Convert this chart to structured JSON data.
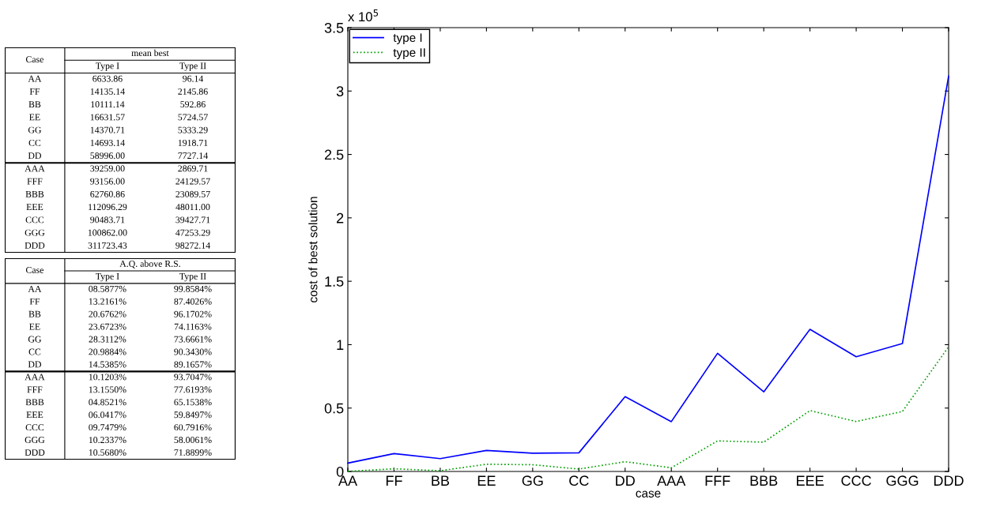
{
  "chart_data": [
    {
      "type": "other",
      "title": "mean best",
      "xlabel": "Case",
      "categories": [
        "AA",
        "FF",
        "BB",
        "EE",
        "GG",
        "CC",
        "DD",
        "AAA",
        "FFF",
        "BBB",
        "EEE",
        "CCC",
        "GGG",
        "DDD"
      ],
      "series": [
        {
          "name": "Type I",
          "values": [
            6633.86,
            14135.14,
            10111.14,
            16631.57,
            14370.71,
            14693.14,
            58996.0,
            39259.0,
            93156.0,
            62760.86,
            112096.29,
            90483.71,
            100862.0,
            311723.43
          ],
          "value_labels": [
            "6633.86",
            "14135.14",
            "10111.14",
            "16631.57",
            "14370.71",
            "14693.14",
            "58996.00",
            "39259.00",
            "93156.00",
            "62760.86",
            "112096.29",
            "90483.71",
            "100862.00",
            "311723.43"
          ]
        },
        {
          "name": "Type II",
          "values": [
            96.14,
            2145.86,
            592.86,
            5724.57,
            5333.29,
            1918.71,
            7727.14,
            2869.71,
            24129.57,
            23089.57,
            48011.0,
            39427.71,
            47253.29,
            98272.14
          ],
          "value_labels": [
            "96.14",
            "2145.86",
            "592.86",
            "5724.57",
            "5333.29",
            "1918.71",
            "7727.14",
            "2869.71",
            "24129.57",
            "23089.57",
            "48011.00",
            "39427.71",
            "47253.29",
            "98272.14"
          ]
        }
      ]
    },
    {
      "type": "other",
      "title": "A.Q. above R.S.",
      "xlabel": "Case",
      "categories": [
        "AA",
        "FF",
        "BB",
        "EE",
        "GG",
        "CC",
        "DD",
        "AAA",
        "FFF",
        "BBB",
        "EEE",
        "CCC",
        "GGG",
        "DDD"
      ],
      "series": [
        {
          "name": "Type I",
          "values": [
            8.5877,
            13.2161,
            20.6762,
            23.6723,
            28.3112,
            20.9884,
            14.5385,
            10.1203,
            13.155,
            4.8521,
            6.0417,
            9.7479,
            10.2337,
            10.568
          ],
          "value_labels": [
            "08.5877%",
            "13.2161%",
            "20.6762%",
            "23.6723%",
            "28.3112%",
            "20.9884%",
            "14.5385%",
            "10.1203%",
            "13.1550%",
            "04.8521%",
            "06.0417%",
            "09.7479%",
            "10.2337%",
            "10.5680%"
          ]
        },
        {
          "name": "Type II",
          "values": [
            99.8584,
            87.4026,
            96.1702,
            74.1163,
            73.6661,
            90.343,
            89.1657,
            93.7047,
            77.6193,
            65.1538,
            59.8497,
            60.7916,
            58.0061,
            71.8899
          ],
          "value_labels": [
            "99.8584%",
            "87.4026%",
            "96.1702%",
            "74.1163%",
            "73.6661%",
            "90.3430%",
            "89.1657%",
            "93.7047%",
            "77.6193%",
            "65.1538%",
            "59.8497%",
            "60.7916%",
            "58.0061%",
            "71.8899%"
          ]
        }
      ]
    },
    {
      "type": "line",
      "xlabel": "case",
      "ylabel": "cost of best solution",
      "categories": [
        "AA",
        "FF",
        "BB",
        "EE",
        "GG",
        "CC",
        "DD",
        "AAA",
        "FFF",
        "BBB",
        "EEE",
        "CCC",
        "GGG",
        "DDD"
      ],
      "series": [
        {
          "name": "type I",
          "color": "#0000ff",
          "line_style": "solid",
          "values": [
            0.066,
            0.141,
            0.101,
            0.166,
            0.144,
            0.147,
            0.59,
            0.393,
            0.932,
            0.628,
            1.121,
            0.905,
            1.009,
            3.117
          ]
        },
        {
          "name": "type II",
          "color": "#00a000",
          "line_style": "dotted",
          "values": [
            0.001,
            0.021,
            0.006,
            0.057,
            0.053,
            0.019,
            0.077,
            0.029,
            0.241,
            0.231,
            0.48,
            0.394,
            0.473,
            0.983
          ]
        }
      ],
      "ylim": [
        0,
        3.5
      ],
      "yticks": [
        0,
        0.5,
        1,
        1.5,
        2,
        2.5,
        3,
        3.5
      ],
      "annotations": [
        "x 10$^{5}$"
      ],
      "legend": "top left",
      "grid": false,
      "marker": "none"
    }
  ]
}
